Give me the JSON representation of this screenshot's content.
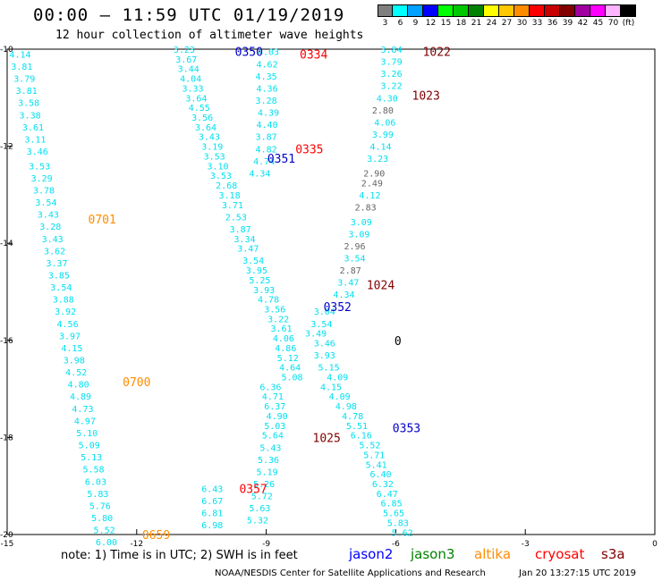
{
  "header": {
    "title": "00:00 – 11:59 UTC 01/19/2019",
    "subtitle": "12 hour collection of altimeter wave heights"
  },
  "scale": {
    "labels": [
      "3",
      "6",
      "9",
      "12",
      "15",
      "18",
      "21",
      "24",
      "27",
      "30",
      "33",
      "36",
      "39",
      "42",
      "45",
      "70",
      "(ft)"
    ],
    "colors": [
      "#7f7f7f",
      "#00ffff",
      "#00a0ff",
      "#0000ff",
      "#00ff00",
      "#00c800",
      "#008200",
      "#ffff00",
      "#ffc800",
      "#ff8c00",
      "#ff0000",
      "#c80000",
      "#820000",
      "#a000a0",
      "#ff00ff",
      "#ffb4ff",
      "#000000"
    ]
  },
  "footer": {
    "note": "note: 1) Time is in UTC; 2) SWH is in feet",
    "satellites": [
      {
        "name": "jason2",
        "color": "#0000ff"
      },
      {
        "name": "jason3",
        "color": "#008200"
      },
      {
        "name": "altika",
        "color": "#ff8c00"
      },
      {
        "name": "cryosat",
        "color": "#ff0000"
      },
      {
        "name": "s3a",
        "color": "#820000"
      }
    ],
    "credit": "NOAA/NESDIS Center for Satellite Applications and Research",
    "stamp": "Jan 20 13:27:15 UTC 2019"
  },
  "chart_data": {
    "type": "scatter",
    "xlim": [
      -15,
      0
    ],
    "ylim": [
      -20,
      -10
    ],
    "xticks": [
      "-15",
      "-12",
      "-9",
      "-6",
      "-3",
      "0"
    ],
    "yticks": [
      "-20",
      "-18",
      "-16",
      "-14",
      "-12",
      "-10"
    ],
    "grid": false,
    "series": [
      {
        "name": "altika",
        "color": "#00e0f0",
        "points": [
          [
            -14.7,
            -10.1,
            "4.14"
          ],
          [
            -14.66,
            -10.35,
            "3.81"
          ],
          [
            -14.6,
            -10.6,
            "3.79"
          ],
          [
            -14.55,
            -10.85,
            "3.81"
          ],
          [
            -14.5,
            -11.1,
            "3.58"
          ],
          [
            -14.47,
            -11.35,
            "3.38"
          ],
          [
            -14.4,
            -11.6,
            "3.61"
          ],
          [
            -14.35,
            -11.85,
            "3.11"
          ],
          [
            -14.3,
            -12.1,
            "3.46"
          ],
          [
            -14.25,
            -12.4,
            "3.53"
          ],
          [
            -14.2,
            -12.65,
            "3.29"
          ],
          [
            -14.15,
            -12.9,
            "3.78"
          ],
          [
            -14.1,
            -13.15,
            "3.54"
          ],
          [
            -14.05,
            -13.4,
            "3.43"
          ],
          [
            -14.0,
            -13.65,
            "3.28"
          ],
          [
            -13.95,
            -13.9,
            "3.43"
          ],
          [
            -13.9,
            -14.15,
            "3.62"
          ],
          [
            -13.85,
            -14.4,
            "3.37"
          ],
          [
            -13.8,
            -14.65,
            "3.85"
          ],
          [
            -13.75,
            -14.9,
            "3.54"
          ],
          [
            -13.7,
            -15.15,
            "3.88"
          ],
          [
            -13.65,
            -15.4,
            "3.92"
          ],
          [
            -13.6,
            -15.65,
            "4.56"
          ],
          [
            -13.55,
            -15.9,
            "3.97"
          ],
          [
            -13.5,
            -16.15,
            "4.15"
          ],
          [
            -13.45,
            -16.4,
            "3.98"
          ],
          [
            -13.4,
            -16.65,
            "4.52"
          ],
          [
            -13.35,
            -16.9,
            "4.80"
          ],
          [
            -13.3,
            -17.15,
            "4.89"
          ],
          [
            -13.25,
            -17.4,
            "4.73"
          ],
          [
            -13.2,
            -17.65,
            "4.97"
          ],
          [
            -13.15,
            -17.9,
            "5.10"
          ],
          [
            -13.1,
            -18.15,
            "5.09"
          ],
          [
            -13.05,
            -18.4,
            "5.13"
          ],
          [
            -13.0,
            -18.65,
            "5.58"
          ],
          [
            -12.95,
            -18.9,
            "6.03"
          ],
          [
            -12.9,
            -19.15,
            "5.83"
          ],
          [
            -12.85,
            -19.4,
            "5.76"
          ],
          [
            -12.8,
            -19.65,
            "5.80"
          ],
          [
            -12.75,
            -19.9,
            "5.52"
          ],
          [
            -12.7,
            -20.15,
            "6.00"
          ],
          [
            -10.9,
            -10.0,
            "3.23"
          ],
          [
            -10.85,
            -10.2,
            "3.67"
          ],
          [
            -10.8,
            -10.4,
            "3.44"
          ],
          [
            -10.75,
            -10.6,
            "4.04"
          ],
          [
            -10.7,
            -10.8,
            "3.33"
          ],
          [
            -10.62,
            -11.0,
            "3.64"
          ],
          [
            -10.55,
            -11.2,
            "4.55"
          ],
          [
            -10.48,
            -11.4,
            "3.56"
          ],
          [
            -10.4,
            -11.6,
            "3.64"
          ],
          [
            -10.32,
            -11.8,
            "3.43"
          ],
          [
            -10.25,
            -12.0,
            "3.19"
          ],
          [
            -10.2,
            -12.2,
            "3.53"
          ],
          [
            -10.12,
            -12.4,
            "3.10"
          ],
          [
            -10.05,
            -12.6,
            "3.53"
          ],
          [
            -9.92,
            -12.8,
            "2.68"
          ],
          [
            -9.85,
            -13.0,
            "3.18"
          ],
          [
            -9.78,
            -13.2,
            "3.71"
          ],
          [
            -9.7,
            -13.45,
            "2.53"
          ],
          [
            -9.6,
            -13.7,
            "3.87"
          ],
          [
            -9.5,
            -13.9,
            "3.34"
          ],
          [
            -9.42,
            -14.1,
            "3.47"
          ],
          [
            -9.3,
            -14.35,
            "3.54"
          ],
          [
            -9.22,
            -14.55,
            "3.95"
          ],
          [
            -9.15,
            -14.75,
            "5.25"
          ],
          [
            -9.05,
            -14.95,
            "3.93"
          ],
          [
            -8.95,
            -15.15,
            "4.78"
          ],
          [
            -8.8,
            -15.35,
            "3.56"
          ],
          [
            -8.72,
            -15.55,
            "3.22"
          ],
          [
            -8.65,
            -15.75,
            "3.61"
          ],
          [
            -8.6,
            -15.95,
            "4.06"
          ],
          [
            -8.55,
            -16.15,
            "4.86"
          ],
          [
            -8.5,
            -16.35,
            "5.12"
          ],
          [
            -8.45,
            -16.55,
            "4.64"
          ],
          [
            -8.4,
            -16.75,
            "5.08"
          ],
          [
            -8.9,
            -16.95,
            "6.36"
          ],
          [
            -8.85,
            -17.15,
            "4.71"
          ],
          [
            -8.8,
            -17.35,
            "6.37"
          ],
          [
            -8.75,
            -17.55,
            "4.90"
          ],
          [
            -8.8,
            -17.75,
            "5.03"
          ],
          [
            -8.85,
            -17.95,
            "5.64"
          ],
          [
            -8.9,
            -18.2,
            "5.43"
          ],
          [
            -8.95,
            -18.45,
            "5.36"
          ],
          [
            -8.98,
            -18.7,
            "5.19"
          ],
          [
            -9.05,
            -18.95,
            "5.26"
          ],
          [
            -9.1,
            -19.2,
            "5.72"
          ],
          [
            -9.15,
            -19.45,
            "5.63"
          ],
          [
            -9.2,
            -19.7,
            "5.32"
          ],
          [
            -10.25,
            -19.05,
            "6.43"
          ],
          [
            -10.25,
            -19.3,
            "6.67"
          ],
          [
            -10.25,
            -19.55,
            "6.81"
          ],
          [
            -10.25,
            -19.8,
            "6.98"
          ]
        ]
      },
      {
        "name": "cryosat",
        "color": "#00e0f0",
        "points": [
          [
            -8.95,
            -10.05,
            "4.03"
          ],
          [
            -8.98,
            -10.3,
            "4.62"
          ],
          [
            -9.0,
            -10.55,
            "4.35"
          ],
          [
            -8.98,
            -10.8,
            "4.36"
          ],
          [
            -9.0,
            -11.05,
            "3.28"
          ],
          [
            -8.95,
            -11.3,
            "4.39"
          ],
          [
            -8.98,
            -11.55,
            "4.40"
          ],
          [
            -9.0,
            -11.8,
            "3.87"
          ],
          [
            -9.0,
            -12.05,
            "4.82"
          ],
          [
            -9.05,
            -12.3,
            "4.74"
          ],
          [
            -9.15,
            -12.55,
            "4.34"
          ],
          [
            -7.65,
            -15.4,
            "3.04"
          ],
          [
            -7.72,
            -15.65,
            "3.54"
          ],
          [
            -7.85,
            -15.85,
            "3.49"
          ],
          [
            -7.65,
            -16.05,
            "3.46"
          ],
          [
            -7.65,
            -16.3,
            "3.93"
          ],
          [
            -7.55,
            -16.55,
            "5.15"
          ],
          [
            -7.35,
            -16.75,
            "4.09"
          ],
          [
            -7.5,
            -16.95,
            "4.15"
          ],
          [
            -7.3,
            -17.15,
            "4.09"
          ],
          [
            -7.15,
            -17.35,
            "4.98"
          ],
          [
            -7.0,
            -17.55,
            "4.78"
          ],
          [
            -6.9,
            -17.75,
            "5.51"
          ],
          [
            -6.8,
            -17.95,
            "6.16"
          ],
          [
            -6.6,
            -18.15,
            "5.52"
          ],
          [
            -6.5,
            -18.35,
            "5.71"
          ],
          [
            -6.45,
            -18.55,
            "5.41"
          ],
          [
            -6.35,
            -18.75,
            "6.40"
          ],
          [
            -6.3,
            -18.95,
            "6.32"
          ],
          [
            -6.2,
            -19.15,
            "6.47"
          ],
          [
            -6.1,
            -19.35,
            "6.85"
          ],
          [
            -6.05,
            -19.55,
            "5.65"
          ],
          [
            -5.95,
            -19.75,
            "5.83"
          ],
          [
            -5.85,
            -19.95,
            "5.62"
          ]
        ]
      },
      {
        "name": "s3a",
        "color": "#00e0f0",
        "points": [
          [
            -6.1,
            -10.0,
            "3.84"
          ],
          [
            -6.1,
            -10.25,
            "3.79"
          ],
          [
            -6.1,
            -10.5,
            "3.26"
          ],
          [
            -6.1,
            -10.75,
            "3.22"
          ],
          [
            -6.2,
            -11.0,
            "4.30"
          ],
          [
            -6.25,
            -11.5,
            "4.06"
          ],
          [
            -6.3,
            -11.75,
            "3.99"
          ],
          [
            -6.35,
            -12.0,
            "4.14"
          ],
          [
            -6.42,
            -12.25,
            "3.23"
          ],
          [
            -6.6,
            -13.0,
            "4.12"
          ],
          [
            -6.8,
            -13.55,
            "3.09"
          ],
          [
            -6.85,
            -13.8,
            "3.09"
          ],
          [
            -6.95,
            -14.3,
            "3.54"
          ],
          [
            -7.1,
            -14.8,
            "3.47"
          ],
          [
            -7.2,
            -15.05,
            "4.34"
          ]
        ]
      },
      {
        "name": "s3a-low",
        "color": "#666666",
        "points": [
          [
            -6.3,
            -11.25,
            "2.80"
          ],
          [
            -6.5,
            -12.55,
            "2.90"
          ],
          [
            -6.55,
            -12.75,
            "2.49"
          ],
          [
            -6.7,
            -13.25,
            "2.83"
          ],
          [
            -6.95,
            -14.05,
            "2.96"
          ],
          [
            -7.05,
            -14.55,
            "2.87"
          ]
        ]
      }
    ],
    "annotations": [
      {
        "x": -9.4,
        "y": -10.05,
        "text": "0350",
        "color": "#0000c8"
      },
      {
        "x": -7.9,
        "y": -10.1,
        "text": "0334",
        "color": "#ff0000"
      },
      {
        "x": -5.05,
        "y": -10.05,
        "text": "1022",
        "color": "#820000"
      },
      {
        "x": -5.3,
        "y": -10.95,
        "text": "1023",
        "color": "#820000"
      },
      {
        "x": -8.0,
        "y": -12.05,
        "text": "0335",
        "color": "#ff0000"
      },
      {
        "x": -8.65,
        "y": -12.25,
        "text": "0351",
        "color": "#0000c8"
      },
      {
        "x": -12.8,
        "y": -13.5,
        "text": "0701",
        "color": "#ff8c00"
      },
      {
        "x": -6.35,
        "y": -14.85,
        "text": "1024",
        "color": "#820000"
      },
      {
        "x": -7.35,
        "y": -15.3,
        "text": "0352",
        "color": "#0000c8"
      },
      {
        "x": -12.0,
        "y": -16.85,
        "text": "0700",
        "color": "#ff8c00"
      },
      {
        "x": -5.75,
        "y": -17.8,
        "text": "0353",
        "color": "#0000c8"
      },
      {
        "x": -7.6,
        "y": -18.0,
        "text": "1025",
        "color": "#820000"
      },
      {
        "x": -9.3,
        "y": -19.05,
        "text": "0357",
        "color": "#ff0000"
      },
      {
        "x": -11.55,
        "y": -20.0,
        "text": "0659",
        "color": "#ff8c00"
      },
      {
        "x": -5.95,
        "y": -16.0,
        "text": "0",
        "color": "#000000"
      }
    ]
  }
}
